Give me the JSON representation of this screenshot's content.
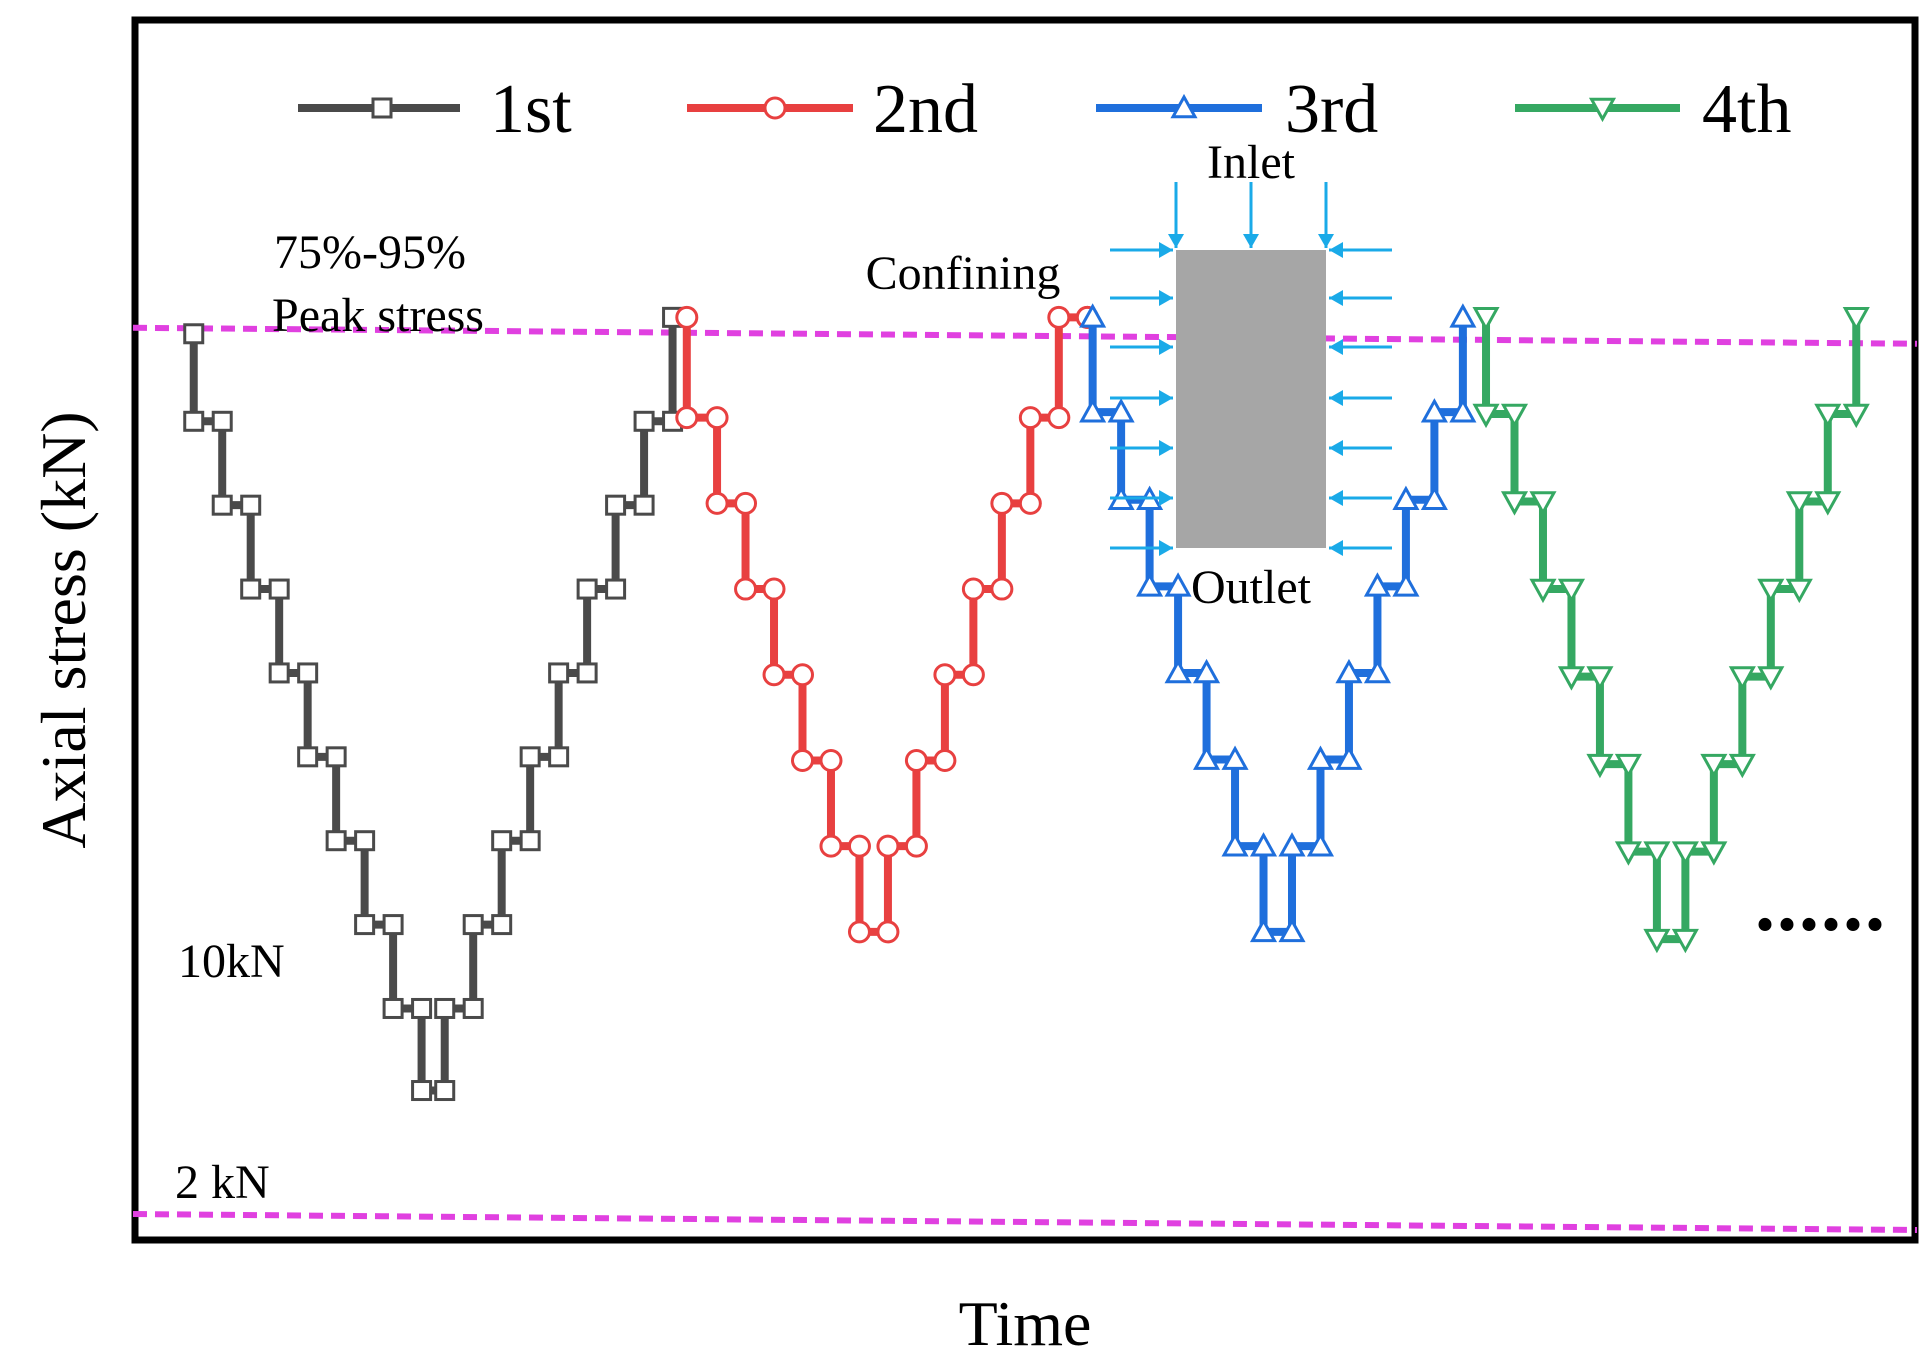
{
  "chart_data": {
    "type": "line",
    "xlabel": "Time",
    "ylabel": "Axial stress (kN)",
    "grid": false,
    "legend_position": "top",
    "ylim": [
      2,
      12.2
    ],
    "xlim": [
      0,
      100
    ],
    "series": [
      {
        "name": "1st",
        "color": "#4a4a4a",
        "marker": "square",
        "x": [
          3.3,
          3.3,
          4.9,
          4.9,
          6.5,
          6.5,
          8.1,
          8.1,
          9.7,
          9.7,
          11.3,
          11.3,
          12.9,
          12.9,
          14.5,
          14.5,
          16.1,
          16.1,
          17.4,
          17.4,
          19.0,
          19.0,
          20.6,
          20.6,
          22.2,
          22.2,
          23.8,
          23.8,
          25.4,
          25.4,
          27.0,
          27.0,
          28.6,
          28.6,
          30.2,
          30.2
        ],
        "y": [
          11.72,
          10.76,
          10.76,
          9.84,
          9.84,
          8.92,
          8.92,
          8.0,
          8.0,
          7.08,
          7.08,
          6.16,
          6.16,
          5.24,
          5.24,
          4.32,
          4.32,
          3.42,
          3.42,
          4.32,
          4.32,
          5.24,
          5.24,
          6.16,
          6.16,
          7.08,
          7.08,
          8.0,
          8.0,
          8.92,
          8.92,
          9.84,
          9.84,
          10.76,
          10.76,
          11.9
        ]
      },
      {
        "name": "2nd",
        "color": "#e84040",
        "marker": "circle",
        "x": [
          31.0,
          31.0,
          32.7,
          32.7,
          34.3,
          34.3,
          35.9,
          35.9,
          37.5,
          37.5,
          39.1,
          39.1,
          40.7,
          40.7,
          42.3,
          42.3,
          43.9,
          43.9,
          45.5,
          45.5,
          47.1,
          47.1,
          48.7,
          48.7,
          50.3,
          50.3,
          51.9,
          51.9,
          53.5,
          53.5
        ],
        "y": [
          11.9,
          10.8,
          10.8,
          9.86,
          9.86,
          8.92,
          8.92,
          7.98,
          7.98,
          7.04,
          7.04,
          6.1,
          6.1,
          5.16,
          5.16,
          6.1,
          6.1,
          7.04,
          7.04,
          7.98,
          7.98,
          8.92,
          8.92,
          9.86,
          9.86,
          10.8,
          10.8,
          11.9,
          11.9,
          11.9
        ]
      },
      {
        "name": "3rd",
        "color": "#1f6fdc",
        "marker": "triangle-up",
        "x": [
          53.8,
          53.8,
          55.4,
          55.4,
          57.0,
          57.0,
          58.6,
          58.6,
          60.2,
          60.2,
          61.8,
          61.8,
          63.4,
          63.4,
          65.0,
          65.0,
          66.6,
          66.6,
          68.2,
          68.2,
          69.8,
          69.8,
          71.4,
          71.4,
          73.0,
          73.0,
          74.6,
          74.6
        ],
        "y": [
          11.9,
          10.86,
          10.86,
          9.9,
          9.9,
          8.95,
          8.95,
          8.0,
          8.0,
          7.05,
          7.05,
          6.1,
          6.1,
          5.16,
          5.16,
          6.1,
          6.1,
          7.05,
          7.05,
          8.0,
          8.0,
          8.95,
          8.95,
          9.9,
          9.9,
          10.86,
          10.86,
          11.9
        ]
      },
      {
        "name": "4th",
        "color": "#35a862",
        "marker": "triangle-down",
        "x": [
          75.9,
          75.9,
          77.5,
          77.5,
          79.1,
          79.1,
          80.7,
          80.7,
          82.3,
          82.3,
          83.9,
          83.9,
          85.5,
          85.5,
          87.1,
          87.1,
          88.7,
          88.7,
          90.3,
          90.3,
          91.9,
          91.9,
          93.5,
          93.5,
          95.1,
          95.1,
          96.7,
          96.7
        ],
        "y": [
          11.9,
          10.84,
          10.84,
          9.88,
          9.88,
          8.92,
          8.92,
          7.96,
          7.96,
          7.0,
          7.0,
          6.04,
          6.04,
          5.08,
          5.08,
          6.04,
          6.04,
          7.0,
          7.0,
          7.96,
          7.96,
          8.92,
          8.92,
          9.88,
          9.88,
          10.84,
          10.84,
          11.9
        ]
      }
    ],
    "reference_lines": [
      {
        "label": "75%-95% Peak stress",
        "y": 11.72,
        "color": "#e040e0"
      },
      {
        "label": "2 kN",
        "y": 2.0,
        "color": "#e040e0"
      }
    ],
    "annotations": {
      "peak_line1": "75%-95%",
      "peak_line2": "Peak stress",
      "label_10kn": "10kN",
      "label_2kn": "2 kN",
      "inlet": "Inlet",
      "confining": "Confining",
      "outlet": "Outlet",
      "continuation": "......"
    },
    "colors": {
      "arrow": "#1aaae8",
      "specimen": "#a6a6a6"
    }
  }
}
